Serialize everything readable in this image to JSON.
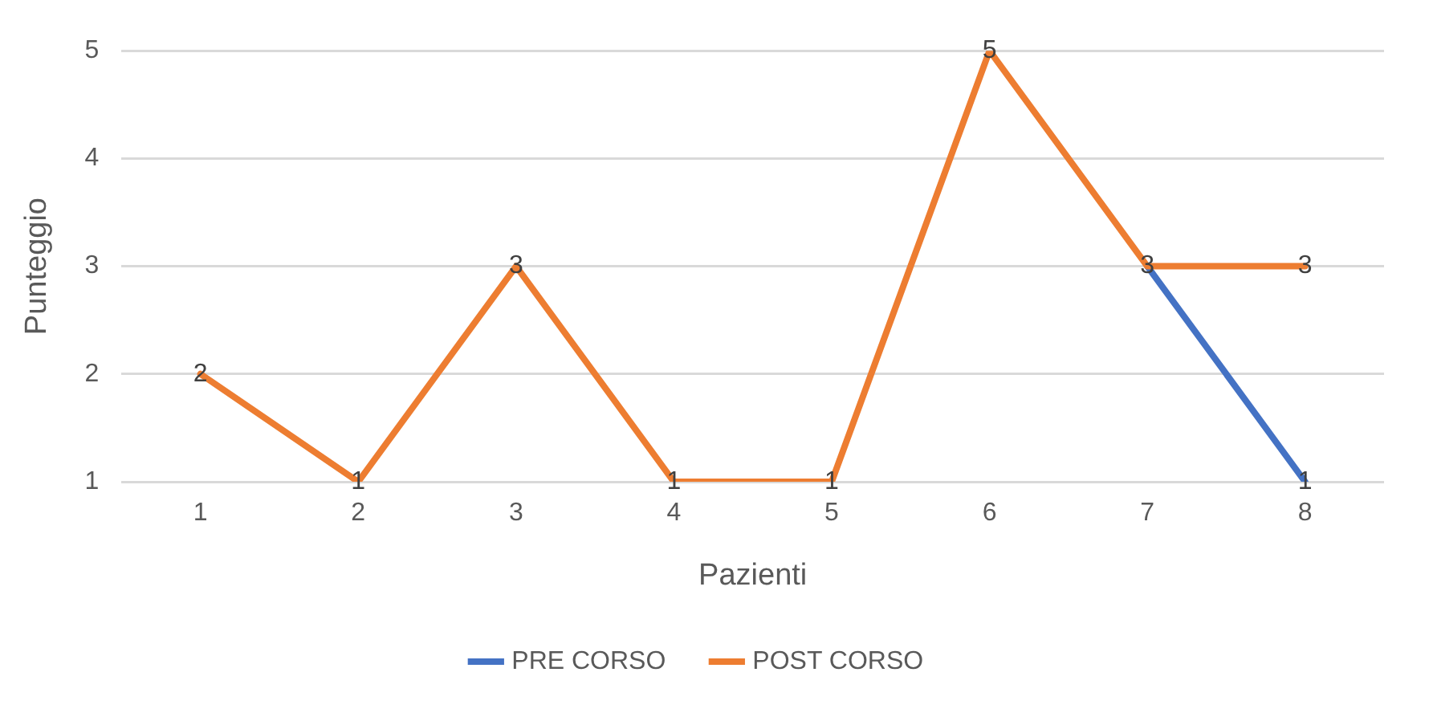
{
  "chart_data": {
    "type": "line",
    "xlabel": "Pazienti",
    "ylabel": "Punteggio",
    "categories": [
      "1",
      "2",
      "3",
      "4",
      "5",
      "6",
      "7",
      "8"
    ],
    "series": [
      {
        "name": "PRE CORSO",
        "color": "#4472c4",
        "values": [
          null,
          null,
          null,
          null,
          null,
          null,
          3,
          1
        ],
        "value_labels": [
          null,
          null,
          null,
          null,
          null,
          null,
          null,
          "1"
        ]
      },
      {
        "name": "POST CORSO",
        "color": "#ed7d31",
        "values": [
          2,
          1,
          3,
          1,
          1,
          5,
          3,
          3
        ],
        "value_labels": [
          "2",
          "1",
          "3",
          "1",
          "1",
          "5",
          "3",
          "3"
        ]
      }
    ],
    "ylim": [
      1,
      5
    ],
    "yticks": [
      1,
      2,
      3,
      4,
      5
    ],
    "grid": "y",
    "legend": "bottom",
    "marker": "none",
    "line_style": "solid"
  }
}
